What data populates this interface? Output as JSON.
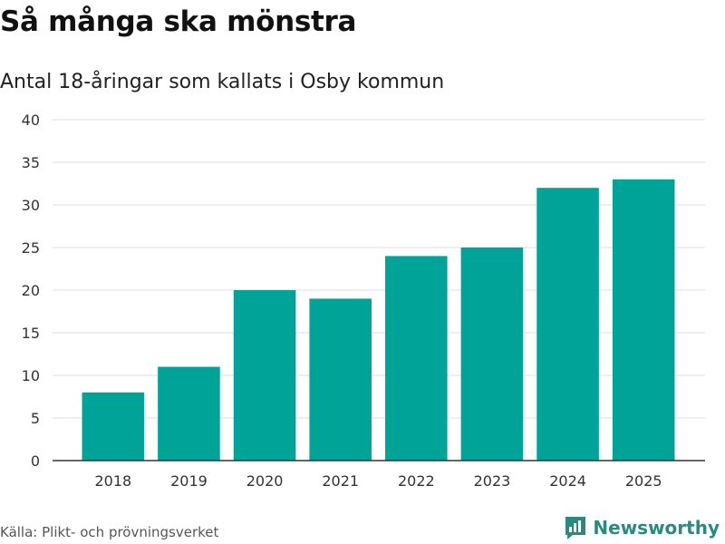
{
  "header": {
    "title": "Så många ska mönstra",
    "subtitle": "Antal 18-åringar som kallats i Osby kommun"
  },
  "footer": {
    "source": "Källa: Plikt- och prövningsverket",
    "brand": "Newsworthy"
  },
  "colors": {
    "bar": "#00a398",
    "grid": "#dddddd",
    "axis": "#333333",
    "brand": "#2a8a80"
  },
  "chart_data": {
    "type": "bar",
    "title": "Så många ska mönstra",
    "subtitle": "Antal 18-åringar som kallats i Osby kommun",
    "categories": [
      "2018",
      "2019",
      "2020",
      "2021",
      "2022",
      "2023",
      "2024",
      "2025"
    ],
    "values": [
      8,
      11,
      20,
      19,
      24,
      25,
      32,
      33
    ],
    "xlabel": "",
    "ylabel": "",
    "ylim": [
      0,
      40
    ],
    "yticks": [
      0,
      5,
      10,
      15,
      20,
      25,
      30,
      35,
      40
    ],
    "grid": true,
    "legend": "none"
  }
}
